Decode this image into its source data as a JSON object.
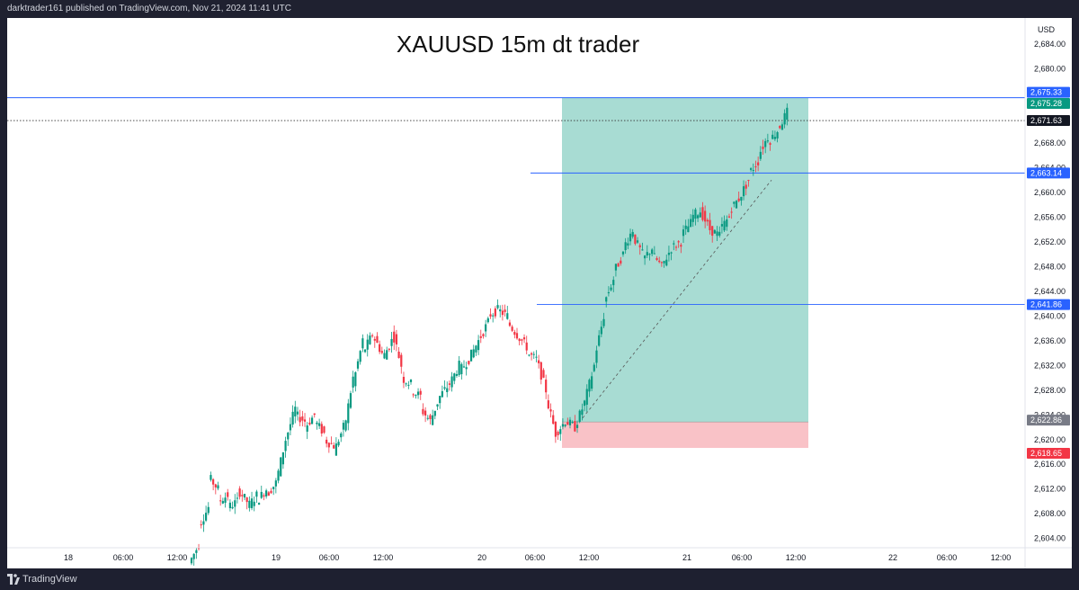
{
  "header": {
    "published_text": "darktrader161 published on TradingView.com, Nov 21, 2024 11:41 UTC"
  },
  "footer": {
    "brand": "TradingView"
  },
  "colors": {
    "up": "#089981",
    "down": "#f23645",
    "profit_zone": "#a8dcd3",
    "loss_zone": "#f9c2c7",
    "hline": "#2962ff"
  },
  "chart_data": {
    "type": "candlestick",
    "title": "XAUUSD 15m  dt trader",
    "currency_label": "USD",
    "ylim": [
      2602.5,
      2687.5
    ],
    "y_ticks": [
      "2,684.00",
      "2,680.00",
      "2,676.00",
      "2,672.00",
      "2,668.00",
      "2,664.00",
      "2,660.00",
      "2,656.00",
      "2,652.00",
      "2,648.00",
      "2,644.00",
      "2,640.00",
      "2,636.00",
      "2,632.00",
      "2,628.00",
      "2,624.00",
      "2,620.00",
      "2,616.00",
      "2,612.00",
      "2,608.00",
      "2,604.00"
    ],
    "x_ticks": [
      "18",
      "06:00",
      "12:00",
      "19",
      "06:00",
      "12:00",
      "20",
      "06:00",
      "12:00",
      "21",
      "06:00",
      "12:00",
      "22",
      "06:00",
      "12:00"
    ],
    "price_labels": [
      {
        "text": "2,675.33",
        "value": 2675.33,
        "style": "blue"
      },
      {
        "text": "2,675.28",
        "value": 2675.28,
        "style": "green"
      },
      {
        "text": "2,671.63",
        "value": 2671.63,
        "style": "black"
      },
      {
        "text": "2,663.14",
        "value": 2663.14,
        "style": "blue"
      },
      {
        "text": "2,641.86",
        "value": 2641.86,
        "style": "blue"
      },
      {
        "text": "2,622.86",
        "value": 2622.86,
        "style": "gray"
      },
      {
        "text": "2,618.65",
        "value": 2618.65,
        "style": "red"
      }
    ],
    "horizontal_lines": [
      {
        "value": 2675.33,
        "style": "solid",
        "from": "full"
      },
      {
        "value": 2671.63,
        "style": "dotted",
        "from": "full"
      },
      {
        "value": 2663.14,
        "style": "solid",
        "from": "partial"
      },
      {
        "value": 2641.86,
        "style": "solid",
        "from": "partial"
      }
    ],
    "position": {
      "type": "long",
      "entry": 2622.86,
      "target": 2675.33,
      "stop": 2618.65
    },
    "ohlc_path": [
      [
        2600,
        2603
      ],
      [
        2606,
        2609
      ],
      [
        2614,
        2612
      ],
      [
        2610,
        2611
      ],
      [
        2609,
        2610
      ],
      [
        2612,
        2610
      ],
      [
        2609,
        2611
      ],
      [
        2610,
        2612
      ],
      [
        2611,
        2613
      ],
      [
        2613,
        2620
      ],
      [
        2620,
        2625
      ],
      [
        2624,
        2623
      ],
      [
        2622,
        2624
      ],
      [
        2623,
        2621
      ],
      [
        2620,
        2619
      ],
      [
        2618,
        2622
      ],
      [
        2621,
        2630
      ],
      [
        2629,
        2636
      ],
      [
        2634,
        2637
      ],
      [
        2637,
        2634
      ],
      [
        2633,
        2636
      ],
      [
        2638,
        2632
      ],
      [
        2630,
        2629
      ],
      [
        2628,
        2627
      ],
      [
        2625,
        2623
      ],
      [
        2623,
        2627
      ],
      [
        2627,
        2629
      ],
      [
        2629,
        2632
      ],
      [
        2631,
        2633
      ],
      [
        2633,
        2636
      ],
      [
        2636,
        2639
      ],
      [
        2640,
        2641
      ],
      [
        2641,
        2640
      ],
      [
        2639,
        2637
      ],
      [
        2637,
        2635
      ],
      [
        2634,
        2633
      ],
      [
        2633,
        2628
      ],
      [
        2627,
        2621
      ],
      [
        2621,
        2623
      ],
      [
        2623,
        2622
      ],
      [
        2622,
        2626
      ],
      [
        2626,
        2632
      ],
      [
        2633,
        2640
      ],
      [
        2642,
        2646
      ],
      [
        2647,
        2650
      ],
      [
        2651,
        2654
      ],
      [
        2653,
        2650
      ],
      [
        2649,
        2651
      ],
      [
        2650,
        2648
      ],
      [
        2648,
        2651
      ],
      [
        2651,
        2652
      ],
      [
        2653,
        2655
      ],
      [
        2656,
        2657
      ],
      [
        2657,
        2654
      ],
      [
        2654,
        2653
      ],
      [
        2654,
        2656
      ],
      [
        2657,
        2659
      ],
      [
        2659,
        2662
      ],
      [
        2663,
        2665
      ],
      [
        2666,
        2669
      ],
      [
        2668,
        2670
      ],
      [
        2670,
        2673
      ]
    ],
    "x_time_labels_note": ""
  }
}
